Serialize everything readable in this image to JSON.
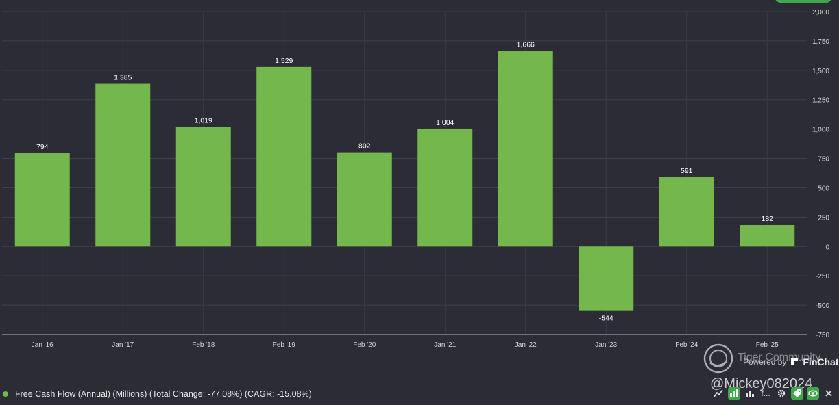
{
  "chart_data": {
    "type": "bar",
    "categories": [
      "Jan '16",
      "Jan '17",
      "Feb '18",
      "Feb '19",
      "Feb '20",
      "Jan '21",
      "Jan '22",
      "Jan '23",
      "Feb '24",
      "Feb '25"
    ],
    "values": [
      794,
      1385,
      1019,
      1529,
      802,
      1004,
      1666,
      -544,
      591,
      182
    ],
    "value_labels": [
      "794",
      "1,385",
      "1,019",
      "1,529",
      "802",
      "1,004",
      "1,666",
      "-544",
      "591",
      "182"
    ],
    "y_ticks": [
      2000,
      1750,
      1500,
      1250,
      1000,
      750,
      500,
      250,
      0,
      -250,
      -500,
      -750
    ],
    "y_tick_labels": [
      "2,000",
      "1,750",
      "1,500",
      "1,250",
      "1,000",
      "750",
      "500",
      "250",
      "0",
      "-250",
      "-500",
      "-750"
    ],
    "ylim": [
      -750,
      2000
    ],
    "grid": true,
    "bar_color": "#74b84d",
    "background": "#2b2c35",
    "axis_position": "right"
  },
  "legend": {
    "label": "Free Cash Flow (Annual) (Millions) (Total Change: -77.08%) (CAGR: -15.08%)",
    "color": "#74b84d"
  },
  "branding": {
    "powered_by": "Powered by",
    "brand_name": "FinChat"
  },
  "watermark": {
    "community": "Tiger Community",
    "handle": "@Mickey082024"
  },
  "toolbar": {
    "icons": [
      "line-chart-icon",
      "bar-chart-icon",
      "stacked-bar-icon",
      "function-icon",
      "settings-icon",
      "tag-icon",
      "eye-icon",
      "close-icon"
    ],
    "function_label": "f..."
  }
}
